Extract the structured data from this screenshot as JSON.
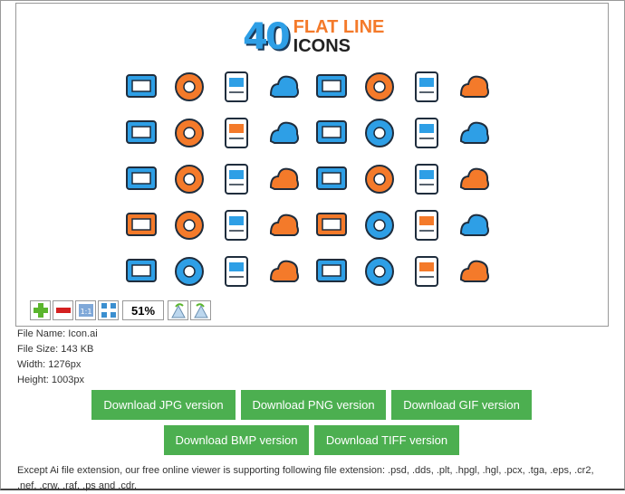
{
  "logo": {
    "number": "40",
    "line1": "FLAT LINE",
    "line2": "ICONS"
  },
  "colors": {
    "blue": "#2e9fe6",
    "orange": "#f47a2a",
    "dark": "#1f2d3d",
    "button": "#4caf50"
  },
  "icons": [
    {
      "name": "presentation-board-icon",
      "c": "#2e9fe6"
    },
    {
      "name": "desktop-monitor-icon",
      "c": "#f47a2a"
    },
    {
      "name": "film-camera-icon",
      "c": "#2e9fe6"
    },
    {
      "name": "photo-camera-icon",
      "c": "#2e9fe6"
    },
    {
      "name": "smartphone-icon",
      "c": "#2e9fe6"
    },
    {
      "name": "web-design-icon",
      "c": "#f47a2a"
    },
    {
      "name": "bar-chart-growth-icon",
      "c": "#2e9fe6"
    },
    {
      "name": "calendar-puzzle-icon",
      "c": "#f47a2a"
    },
    {
      "name": "open-book-icon",
      "c": "#2e9fe6"
    },
    {
      "name": "checklist-document-icon",
      "c": "#f47a2a"
    },
    {
      "name": "books-apple-icon",
      "c": "#f47a2a"
    },
    {
      "name": "graduation-cap-icon",
      "c": "#2e9fe6"
    },
    {
      "name": "globe-checkbox-icon",
      "c": "#2e9fe6"
    },
    {
      "name": "cloud-download-icon",
      "c": "#2e9fe6"
    },
    {
      "name": "cloud-lock-icon",
      "c": "#2e9fe6"
    },
    {
      "name": "cloud-check-icon",
      "c": "#2e9fe6"
    },
    {
      "name": "light-bulb-icon",
      "c": "#2e9fe6"
    },
    {
      "name": "target-arrow-icon",
      "c": "#f47a2a"
    },
    {
      "name": "briefcase-icon",
      "c": "#2e9fe6"
    },
    {
      "name": "chat-bubbles-icon",
      "c": "#f47a2a"
    },
    {
      "name": "paper-plane-icon",
      "c": "#2e9fe6"
    },
    {
      "name": "envelope-icon",
      "c": "#f47a2a"
    },
    {
      "name": "magnifier-icon",
      "c": "#2e9fe6"
    },
    {
      "name": "folder-icon",
      "c": "#f47a2a"
    },
    {
      "name": "balance-scale-icon",
      "c": "#f47a2a"
    },
    {
      "name": "banknote-icon",
      "c": "#f47a2a"
    },
    {
      "name": "coins-icon",
      "c": "#2e9fe6"
    },
    {
      "name": "wallet-icon",
      "c": "#f47a2a"
    },
    {
      "name": "piggy-bank-icon",
      "c": "#f47a2a"
    },
    {
      "name": "location-pin-icon",
      "c": "#2e9fe6"
    },
    {
      "name": "map-pin-icon",
      "c": "#f47a2a"
    },
    {
      "name": "compass-icon",
      "c": "#2e9fe6"
    },
    {
      "name": "earth-planet-icon",
      "c": "#2e9fe6"
    },
    {
      "name": "ringed-planet-icon",
      "c": "#2e9fe6"
    },
    {
      "name": "moon-craters-icon",
      "c": "#2e9fe6"
    },
    {
      "name": "mars-planet-icon",
      "c": "#f47a2a"
    },
    {
      "name": "satellite-icon",
      "c": "#2e9fe6"
    },
    {
      "name": "telescope-icon",
      "c": "#2e9fe6"
    },
    {
      "name": "rocket-icon",
      "c": "#f47a2a"
    },
    {
      "name": "ufo-icon",
      "c": "#f47a2a"
    }
  ],
  "toolbar": {
    "zoom_value": "51%"
  },
  "file_info": {
    "name": "File Name: Icon.ai",
    "size": "File Size: 143 KB",
    "width": "Width: 1276px",
    "height": "Height: 1003px"
  },
  "buttons": {
    "jpg": "Download JPG version",
    "png": "Download PNG version",
    "gif": "Download GIF version",
    "bmp": "Download BMP version",
    "tiff": "Download TIFF version"
  },
  "footer": "Except Ai file extension, our free online viewer is supporting following file extension: .psd, .dds, .plt, .hpgl, .hgl, .pcx, .tga, .eps, .cr2, .nef, .crw, .raf, .ps and .cdr."
}
